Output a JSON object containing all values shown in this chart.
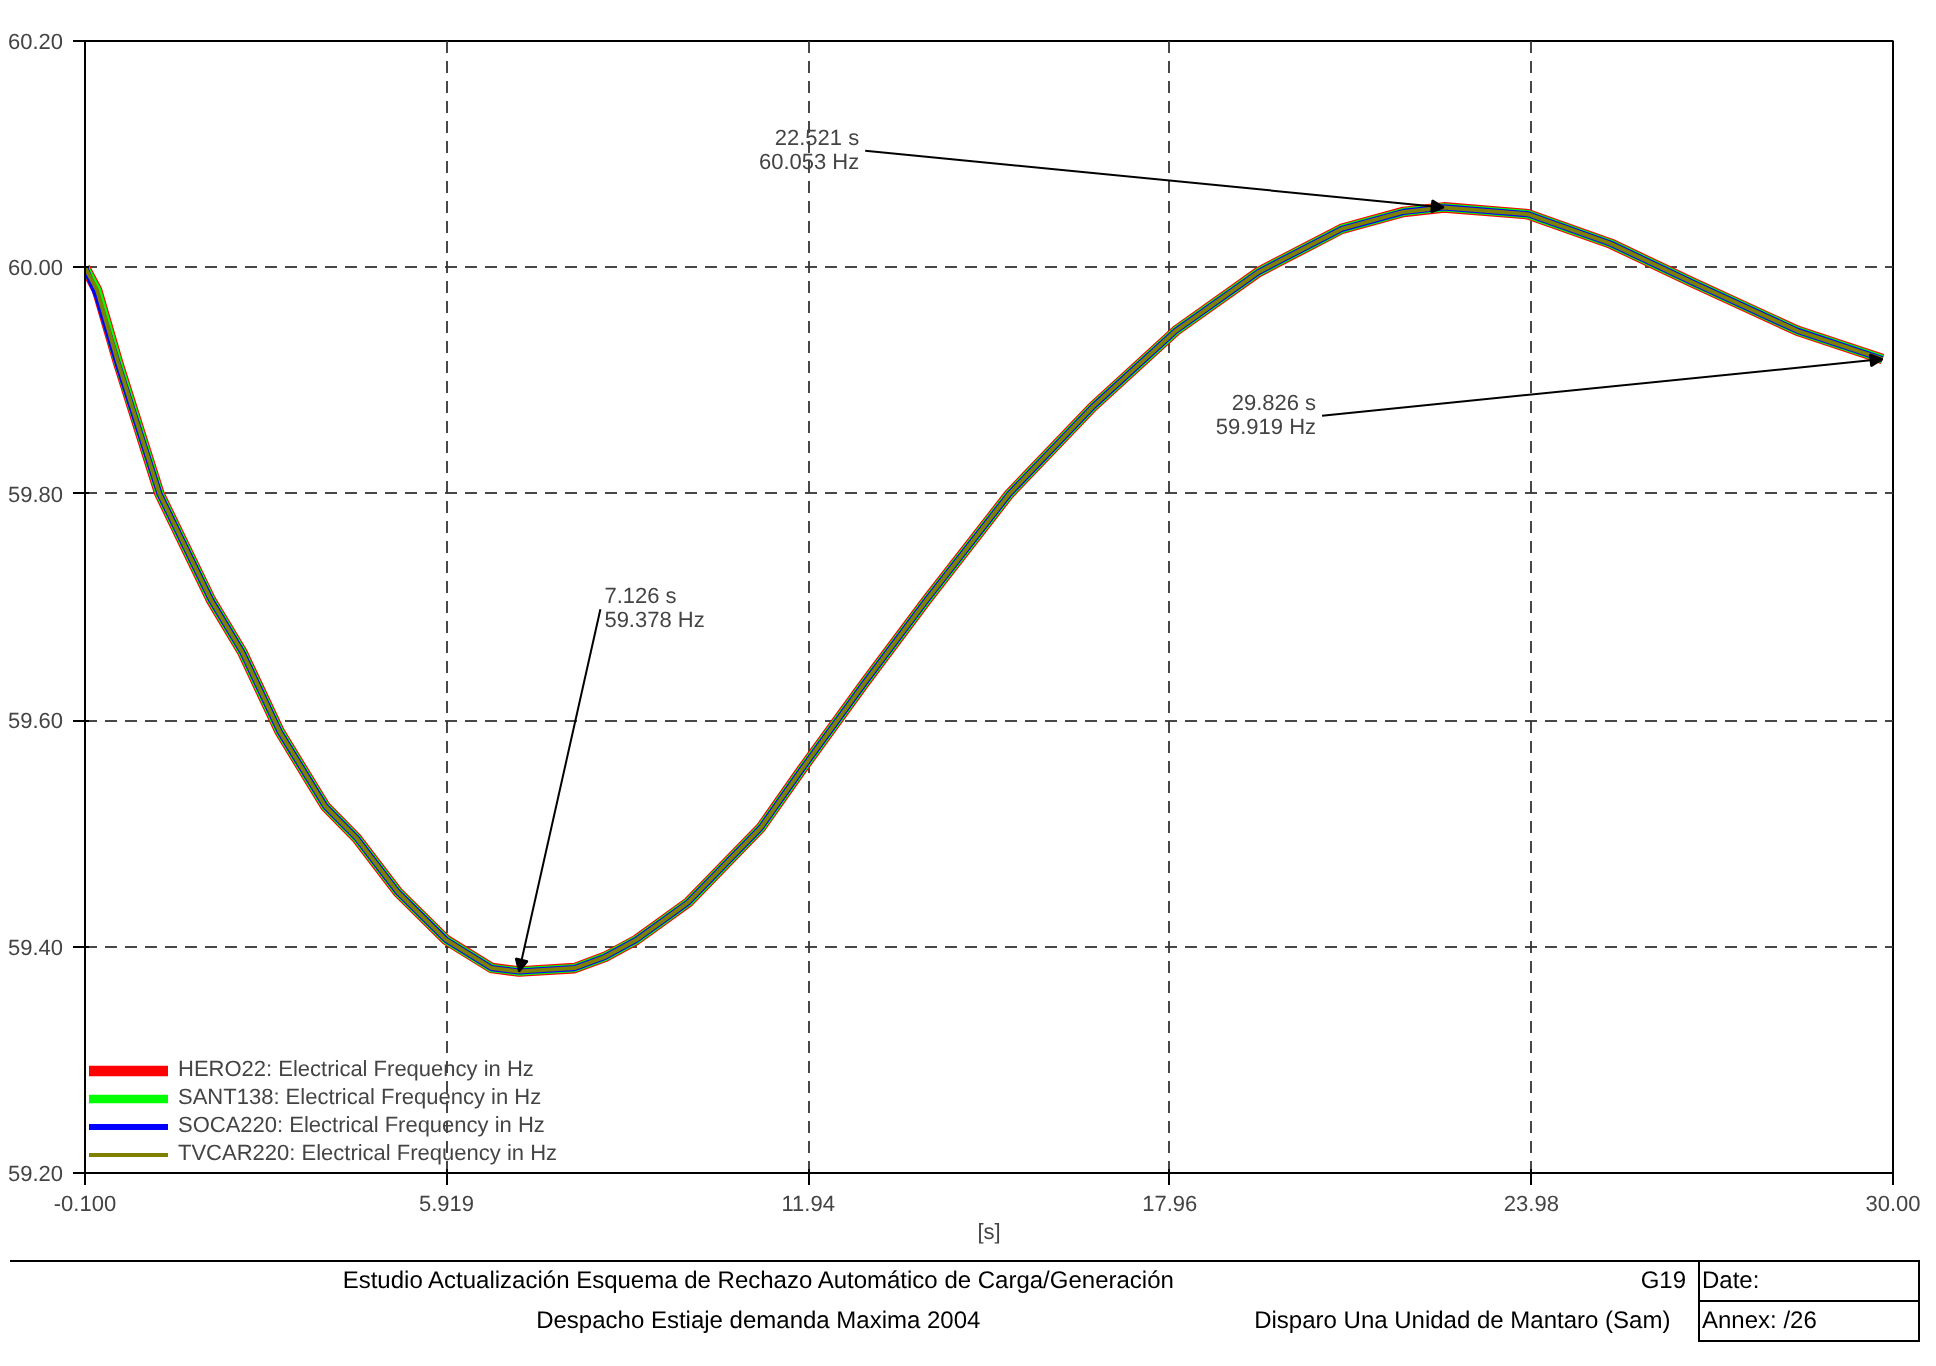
{
  "chart_data": {
    "type": "line",
    "x": [
      -0.1,
      0.1,
      0.45,
      1.14,
      2.0,
      2.52,
      3.14,
      3.9,
      4.42,
      5.11,
      5.91,
      6.67,
      7.126,
      8.05,
      8.56,
      9.08,
      9.94,
      11.15,
      11.84,
      12.88,
      13.91,
      15.29,
      16.68,
      18.06,
      19.44,
      20.82,
      21.85,
      22.521,
      23.92,
      25.3,
      26.69,
      28.41,
      29.826
    ],
    "series": [
      {
        "name": "HERO22: Electrical Frequency in Hz",
        "color": "#ff0000",
        "values": [
          60.0,
          59.98,
          59.916,
          59.8,
          59.706,
          59.66,
          59.59,
          59.524,
          59.496,
          59.448,
          59.406,
          59.381,
          59.378,
          59.381,
          59.391,
          59.406,
          59.439,
          59.505,
          59.557,
          59.633,
          59.706,
          59.8,
          59.877,
          59.944,
          59.996,
          60.034,
          60.049,
          60.053,
          60.047,
          60.021,
          59.986,
          59.944,
          59.919
        ]
      },
      {
        "name": "SANT138: Electrical Frequency in Hz",
        "color": "#00ff00",
        "values": [
          60.0,
          59.98,
          59.916,
          59.8,
          59.706,
          59.66,
          59.59,
          59.524,
          59.496,
          59.448,
          59.406,
          59.381,
          59.378,
          59.381,
          59.391,
          59.406,
          59.439,
          59.505,
          59.557,
          59.633,
          59.706,
          59.8,
          59.877,
          59.944,
          59.996,
          60.034,
          60.049,
          60.053,
          60.047,
          60.021,
          59.986,
          59.944,
          59.919
        ]
      },
      {
        "name": "SOCA220: Electrical Frequency in Hz",
        "color": "#0000ff",
        "values": [
          60.0,
          59.975,
          59.914,
          59.8,
          59.706,
          59.66,
          59.59,
          59.524,
          59.496,
          59.448,
          59.406,
          59.381,
          59.378,
          59.381,
          59.391,
          59.406,
          59.439,
          59.505,
          59.557,
          59.633,
          59.706,
          59.8,
          59.877,
          59.944,
          59.996,
          60.034,
          60.049,
          60.053,
          60.047,
          60.021,
          59.986,
          59.944,
          59.919
        ]
      },
      {
        "name": "TVCAR220: Electrical Frequency in Hz",
        "color": "#808000",
        "values": [
          60.0,
          59.98,
          59.916,
          59.8,
          59.706,
          59.66,
          59.59,
          59.524,
          59.496,
          59.448,
          59.406,
          59.381,
          59.378,
          59.381,
          59.391,
          59.406,
          59.439,
          59.505,
          59.557,
          59.633,
          59.706,
          59.8,
          59.877,
          59.944,
          59.996,
          60.034,
          60.049,
          60.053,
          60.047,
          60.021,
          59.986,
          59.944,
          59.919
        ]
      }
    ],
    "xlabel": "[s]",
    "xlim": [
      -0.1,
      30.0
    ],
    "xticks": [
      {
        "value": -0.1,
        "label": "-0.100"
      },
      5.919,
      11.94,
      17.96,
      23.98,
      {
        "value": 30.0,
        "label": "30.00"
      }
    ],
    "ylim": [
      59.2,
      60.2
    ],
    "yticks": [
      {
        "value": 59.2,
        "label": "59.20"
      },
      {
        "value": 59.4,
        "label": "59.40"
      },
      {
        "value": 59.6,
        "label": "59.60"
      },
      {
        "value": 59.8,
        "label": "59.80"
      },
      {
        "value": 60.0,
        "label": "60.00"
      },
      {
        "value": 60.2,
        "label": "60.20"
      }
    ],
    "grid": true,
    "line_style": "solid",
    "legend": "bottom left",
    "annotations": [
      {
        "text": "7.126 s\n59.378 Hz",
        "x": 7.126,
        "y": 59.378
      },
      {
        "text": "22.521 s\n60.053 Hz",
        "x": 22.521,
        "y": 60.053
      },
      {
        "text": "29.826 s\n59.919 Hz",
        "x": 29.826,
        "y": 59.919
      },
      "Estudio Actualización Esquema de Rechazo Automático de Carga/Generación",
      "G19",
      "Date:",
      "Despacho Estiaje demanda Maxima 2004",
      "Disparo Una Unidad de Mantaro (Sam)",
      "Annex:  /26"
    ]
  }
}
